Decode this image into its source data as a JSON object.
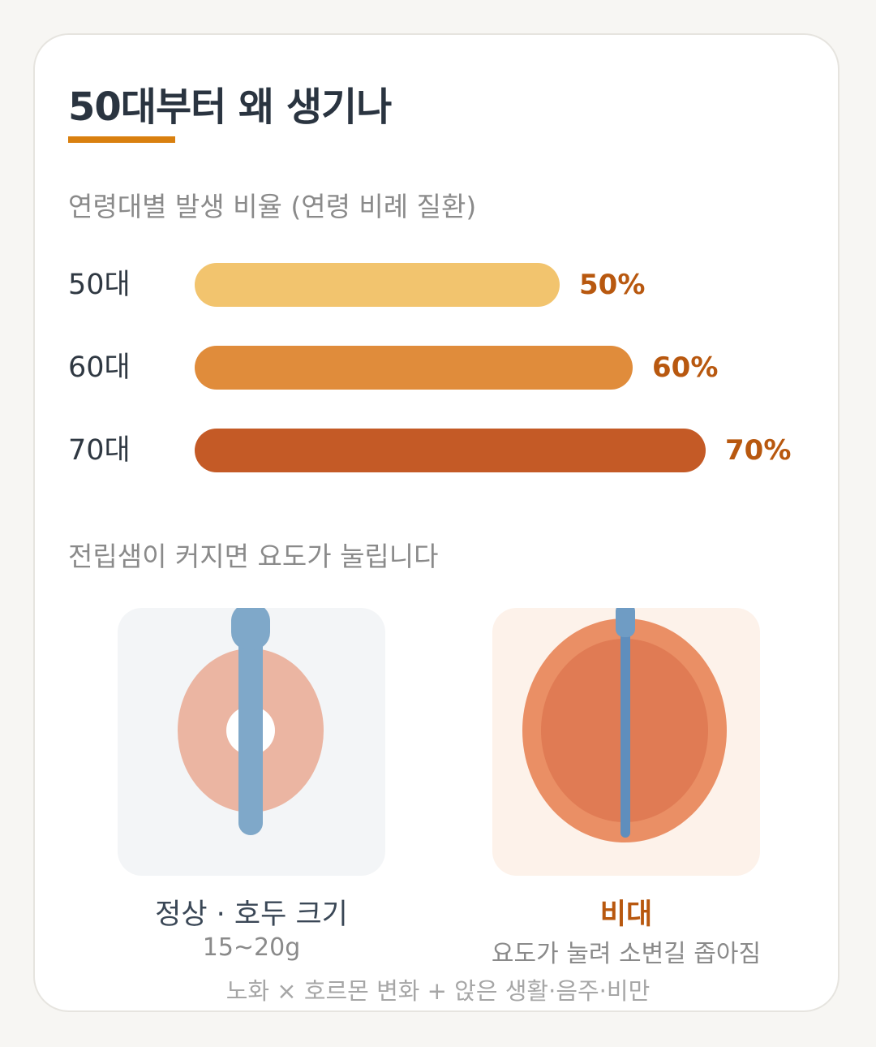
{
  "title": "50대부터 왜 생기나",
  "chart_section_label": "연령대별 발생 비율 (연령 비례 질환)",
  "chart_data": {
    "type": "bar",
    "orientation": "horizontal",
    "categories": [
      "50대",
      "60대",
      "70대"
    ],
    "values": [
      50,
      60,
      70
    ],
    "value_labels": [
      "50%",
      "60%",
      "70%"
    ],
    "colors": [
      "#f2c46e",
      "#e08c3b",
      "#c45a26"
    ],
    "xlim": [
      0,
      100
    ]
  },
  "diagram_section_label": "전립샘이 커지면 요도가 눌립니다",
  "normal": {
    "caption": "정상 · 호두 크기",
    "sub": "15~20g"
  },
  "enlarged": {
    "caption": "비대",
    "sub": "요도가 눌려 소변길 좁아짐"
  },
  "footer": "노화 × 호르몬 변화 + 앉은 생활·음주·비만",
  "colors": {
    "accent": "#d9800f",
    "value_text": "#b8580f",
    "urethra": "#7fa8c9",
    "normal_prostate": "#ebb5a2",
    "enlarged_prostate_outer": "#ea8f65",
    "enlarged_prostate_inner": "#e07b54"
  }
}
